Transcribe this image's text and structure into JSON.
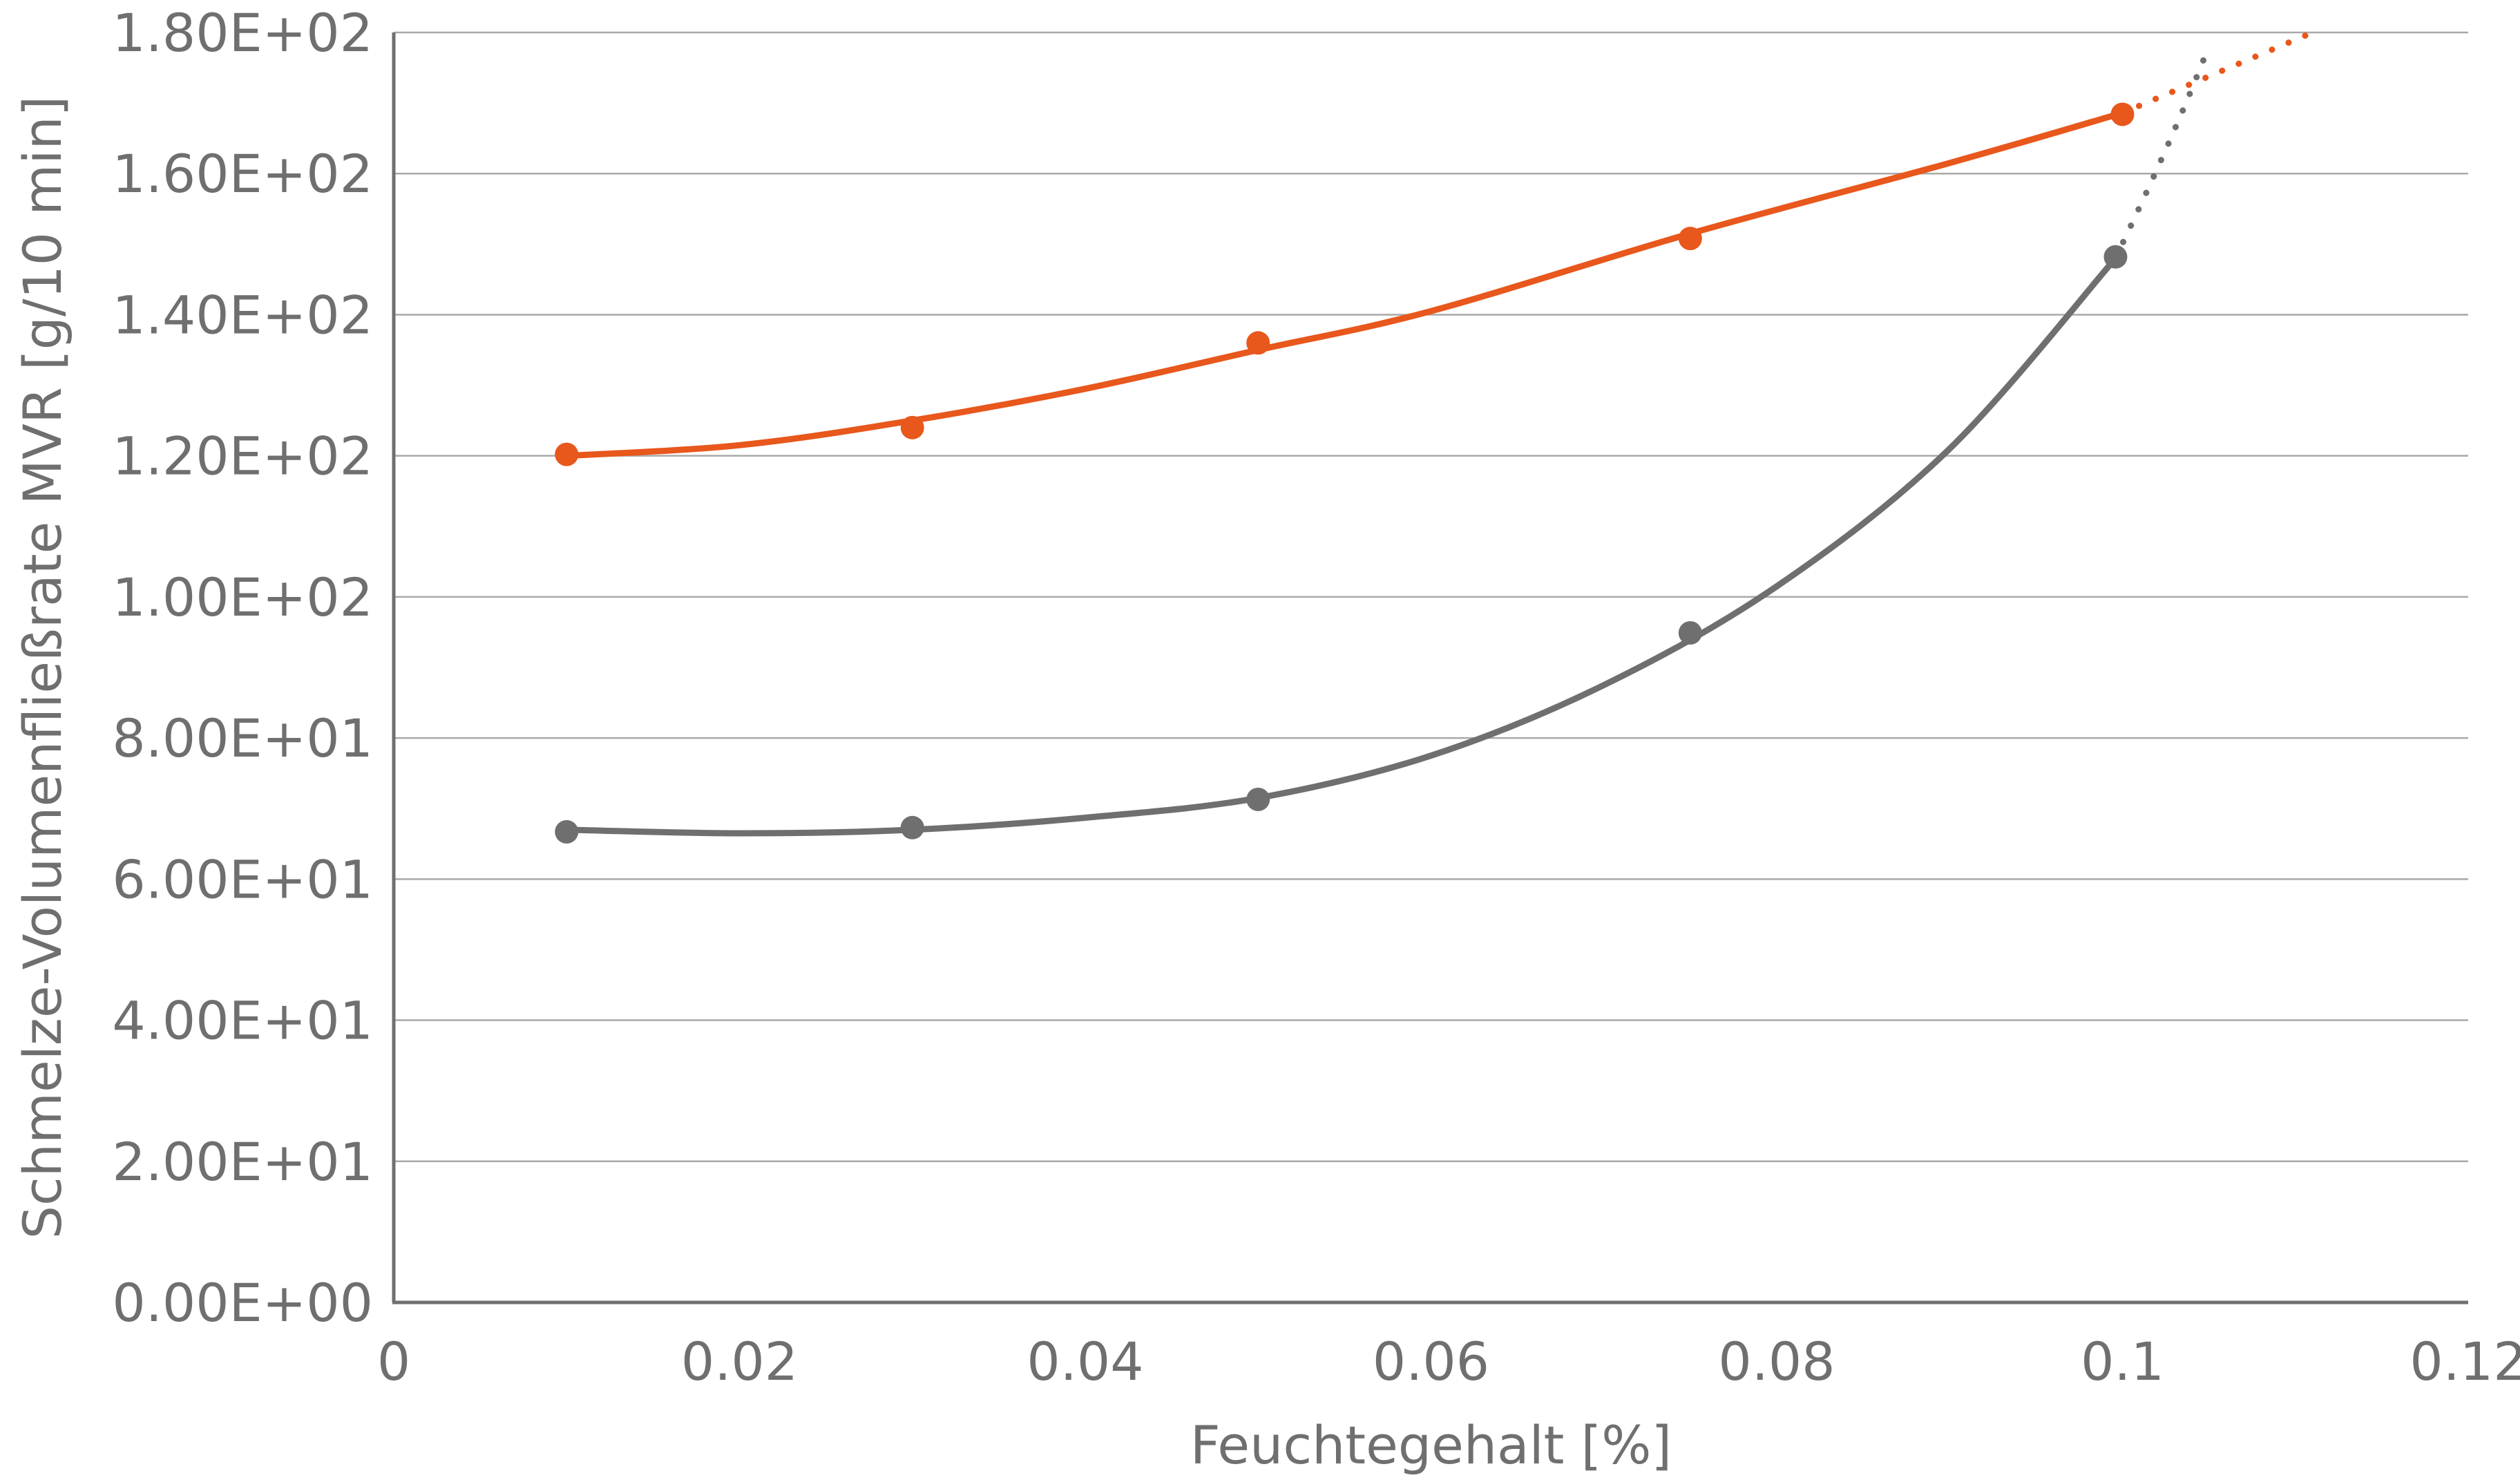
{
  "chart_data": {
    "type": "scatter",
    "title": "",
    "xlabel": "Feuchtegehalt [%]",
    "ylabel": "Schmelze-Volumenfließrate MVR [g/10 min]",
    "xlim": [
      0,
      0.12
    ],
    "ylim": [
      0,
      180
    ],
    "x_ticks": [
      0,
      0.02,
      0.04,
      0.06,
      0.08,
      0.1,
      0.12
    ],
    "x_tick_labels": [
      "0",
      "0.02",
      "0.04",
      "0.06",
      "0.08",
      "0.1",
      "0.12"
    ],
    "y_ticks": [
      0,
      20,
      40,
      60,
      80,
      100,
      120,
      140,
      160,
      180
    ],
    "y_tick_labels": [
      "0.00E+00",
      "2.00E+01",
      "4.00E+01",
      "6.00E+01",
      "8.00E+01",
      "1.00E+02",
      "1.20E+02",
      "1.40E+02",
      "1.60E+02",
      "1.80E+02"
    ],
    "grid": "horizontal",
    "legend": "none",
    "series": [
      {
        "color": "#e8571c",
        "points": [
          {
            "x": 0.01,
            "y": 120.2
          },
          {
            "x": 0.03,
            "y": 124.0
          },
          {
            "x": 0.05,
            "y": 136.0
          },
          {
            "x": 0.075,
            "y": 150.8
          },
          {
            "x": 0.1,
            "y": 168.4
          }
        ],
        "trend": [
          {
            "x": 0.01,
            "y": 120.0
          },
          {
            "x": 0.02,
            "y": 121.5
          },
          {
            "x": 0.03,
            "y": 125.0
          },
          {
            "x": 0.04,
            "y": 129.5
          },
          {
            "x": 0.05,
            "y": 135.0
          },
          {
            "x": 0.06,
            "y": 140.5
          },
          {
            "x": 0.075,
            "y": 151.5
          },
          {
            "x": 0.09,
            "y": 161.5
          },
          {
            "x": 0.1,
            "y": 168.6
          }
        ],
        "extrapolation": [
          {
            "x": 0.1,
            "y": 168.6
          },
          {
            "x": 0.111,
            "y": 180.0
          }
        ]
      },
      {
        "color": "#6f6f6f",
        "points": [
          {
            "x": 0.01,
            "y": 66.7
          },
          {
            "x": 0.03,
            "y": 67.3
          },
          {
            "x": 0.05,
            "y": 71.3
          },
          {
            "x": 0.075,
            "y": 94.9
          },
          {
            "x": 0.0996,
            "y": 148.2
          }
        ],
        "trend": [
          {
            "x": 0.01,
            "y": 67.0
          },
          {
            "x": 0.02,
            "y": 66.5
          },
          {
            "x": 0.03,
            "y": 67.0
          },
          {
            "x": 0.04,
            "y": 68.7
          },
          {
            "x": 0.05,
            "y": 71.5
          },
          {
            "x": 0.06,
            "y": 77.5
          },
          {
            "x": 0.07,
            "y": 87.5
          },
          {
            "x": 0.08,
            "y": 101.5
          },
          {
            "x": 0.09,
            "y": 121.0
          },
          {
            "x": 0.0996,
            "y": 148.0
          }
        ],
        "extrapolation": [
          {
            "x": 0.0996,
            "y": 148.0
          },
          {
            "x": 0.1017,
            "y": 159.0
          },
          {
            "x": 0.1035,
            "y": 169.0
          },
          {
            "x": 0.105,
            "y": 178.0
          }
        ]
      }
    ]
  }
}
